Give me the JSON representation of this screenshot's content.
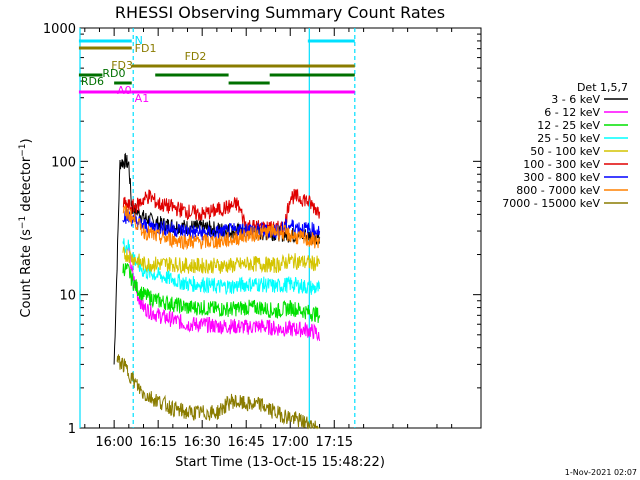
{
  "chart_data": {
    "type": "line",
    "title": "RHESSI Observing Summary Count Rates",
    "xlabel": "Start Time (13-Oct-15 15:48:22)",
    "ylabel": "Count Rate (s⁻¹ detector⁻¹)",
    "ylabel_main": "Count Rate (s",
    "ylabel_sup1": "−1",
    "ylabel_mid": " detector",
    "ylabel_sup2": "−1",
    "ylabel_end": ")",
    "y_scale": "log",
    "ylim": [
      1,
      1000
    ],
    "xlim": [
      "15:48:22",
      "18:05:00"
    ],
    "y_ticks": [
      1,
      10,
      100,
      1000
    ],
    "y_tick_labels": [
      "1",
      "10",
      "100",
      "1000"
    ],
    "x_ticks": [
      "16:00",
      "16:15",
      "16:30",
      "16:45",
      "17:00",
      "17:15"
    ],
    "timestamp": "1-Nov-2021 02:07",
    "legend": {
      "position": "right",
      "header": "Det 1,5,7",
      "entries": [
        {
          "name": "3 - 6 keV",
          "color": "#000000"
        },
        {
          "name": "6 - 12 keV",
          "color": "#ff00ff"
        },
        {
          "name": "12 - 25 keV",
          "color": "#00e000"
        },
        {
          "name": "25 - 50 keV",
          "color": "#00ffff"
        },
        {
          "name": "50 - 100 keV",
          "color": "#d4c400"
        },
        {
          "name": "100 - 300 keV",
          "color": "#e00000"
        },
        {
          "name": "300 - 800 keV",
          "color": "#0000ff"
        },
        {
          "name": "800 - 7000 keV",
          "color": "#ff8000"
        },
        {
          "name": "7000 - 15000 keV",
          "color": "#8a7c00"
        }
      ]
    },
    "flag_bars": [
      {
        "label": "N",
        "color": "#00e0ff",
        "segments": [
          [
            "15:48",
            "16:06"
          ],
          [
            "17:06",
            "17:22"
          ]
        ]
      },
      {
        "label": "FD1",
        "color": "#8a7c00",
        "segments": [
          [
            "15:48",
            "16:06"
          ]
        ]
      },
      {
        "label": "FD2",
        "color": "#8a7c00",
        "segments": [
          [
            "16:06",
            "17:22"
          ]
        ]
      },
      {
        "label": "FD3",
        "color": "#8a7c00",
        "segments": []
      },
      {
        "label": "RD0",
        "color": "#007000",
        "segments": [
          [
            "15:48",
            "15:56"
          ],
          [
            "16:14",
            "16:39"
          ],
          [
            "16:53",
            "17:22"
          ]
        ]
      },
      {
        "label": "RD6",
        "color": "#007000",
        "segments": [
          [
            "16:00",
            "16:06"
          ],
          [
            "16:39",
            "16:53"
          ]
        ]
      },
      {
        "label": "A0",
        "color": "#ff00ff",
        "segments": [
          [
            "15:48",
            "16:06"
          ]
        ]
      },
      {
        "label": "A1",
        "color": "#ff00ff",
        "segments": [
          [
            "16:06",
            "17:22"
          ]
        ]
      }
    ],
    "series": [
      {
        "name": "3 - 6 keV",
        "color": "#000000",
        "x": [
          "16:00",
          "16:02",
          "16:04",
          "16:05",
          "16:06",
          "16:08",
          "16:10",
          "16:15",
          "16:20",
          "16:25",
          "16:30",
          "16:35",
          "16:40",
          "16:45",
          "16:50",
          "16:55",
          "17:00",
          "17:05",
          "17:10"
        ],
        "y": [
          3,
          98,
          100,
          95,
          45,
          42,
          38,
          34,
          33,
          32,
          32,
          31,
          30,
          30,
          29,
          29,
          28,
          28,
          27
        ]
      },
      {
        "name": "6 - 12 keV",
        "color": "#ff00ff",
        "x": [
          "16:05",
          "16:06",
          "16:08",
          "16:10",
          "16:15",
          "16:20",
          "16:25",
          "16:30",
          "16:35",
          "16:40",
          "16:45",
          "16:50",
          "16:55",
          "17:00",
          "17:05",
          "17:09",
          "17:10"
        ],
        "y": [
          20,
          15,
          10,
          8,
          7,
          6.5,
          6,
          6,
          5.8,
          5.8,
          5.7,
          5.8,
          5.6,
          5.5,
          5.5,
          5.2,
          4.5
        ]
      },
      {
        "name": "12 - 25 keV",
        "color": "#00e000",
        "x": [
          "16:03",
          "16:05",
          "16:06",
          "16:08",
          "16:10",
          "16:15",
          "16:20",
          "16:25",
          "16:30",
          "16:35",
          "16:40",
          "16:45",
          "16:50",
          "16:55",
          "17:00",
          "17:05",
          "17:10"
        ],
        "y": [
          16,
          15,
          13,
          11,
          10,
          9,
          8.5,
          8,
          8,
          7.8,
          7.8,
          8,
          8,
          7.5,
          8,
          7.5,
          7
        ]
      },
      {
        "name": "25 - 50 keV",
        "color": "#00ffff",
        "x": [
          "16:03",
          "16:05",
          "16:06",
          "16:08",
          "16:10",
          "16:15",
          "16:20",
          "16:25",
          "16:30",
          "16:35",
          "16:40",
          "16:45",
          "16:50",
          "16:55",
          "17:00",
          "17:05",
          "17:10"
        ],
        "y": [
          24,
          23,
          20,
          17,
          15,
          14,
          13,
          12,
          12,
          11.5,
          11.5,
          12,
          12,
          11.5,
          12,
          11.5,
          11
        ]
      },
      {
        "name": "50 - 100 keV",
        "color": "#d4c400",
        "x": [
          "16:03",
          "16:05",
          "16:06",
          "16:08",
          "16:10",
          "16:15",
          "16:20",
          "16:25",
          "16:30",
          "16:35",
          "16:40",
          "16:45",
          "16:50",
          "16:55",
          "17:00",
          "17:05",
          "17:10"
        ],
        "y": [
          20,
          20,
          19,
          18,
          17,
          17,
          17,
          16.5,
          16.5,
          16.5,
          16.5,
          17,
          17,
          16.5,
          18,
          17.5,
          17
        ]
      },
      {
        "name": "100 - 300 keV",
        "color": "#e00000",
        "x": [
          "16:03",
          "16:05",
          "16:06",
          "16:08",
          "16:10",
          "16:12",
          "16:15",
          "16:20",
          "16:25",
          "16:30",
          "16:35",
          "16:40",
          "16:42",
          "16:45",
          "16:50",
          "16:55",
          "16:58",
          "17:00",
          "17:05",
          "17:10"
        ],
        "y": [
          48,
          46,
          45,
          47,
          52,
          55,
          48,
          45,
          42,
          40,
          43,
          46,
          48,
          33,
          32,
          31,
          32,
          55,
          52,
          42
        ]
      },
      {
        "name": "300 - 800 keV",
        "color": "#0000ff",
        "x": [
          "16:03",
          "16:05",
          "16:06",
          "16:08",
          "16:10",
          "16:15",
          "16:20",
          "16:25",
          "16:30",
          "16:35",
          "16:40",
          "16:45",
          "16:50",
          "16:55",
          "17:00",
          "17:05",
          "17:10"
        ],
        "y": [
          40,
          38,
          37,
          35,
          33,
          32,
          31,
          30,
          29,
          29,
          30,
          31,
          30,
          30,
          33,
          31,
          30
        ]
      },
      {
        "name": "800 - 7000 keV",
        "color": "#ff8000",
        "x": [
          "16:03",
          "16:05",
          "16:06",
          "16:08",
          "16:10",
          "16:15",
          "16:20",
          "16:25",
          "16:30",
          "16:35",
          "16:40",
          "16:45",
          "16:50",
          "16:55",
          "17:00",
          "17:05",
          "17:10"
        ],
        "y": [
          42,
          40,
          38,
          34,
          30,
          27,
          26,
          25,
          25,
          25,
          26,
          28,
          29,
          30,
          28,
          26,
          25
        ]
      },
      {
        "name": "7000 - 15000 keV",
        "color": "#8a7c00",
        "x": [
          "16:01",
          "16:03",
          "16:05",
          "16:07",
          "16:10",
          "16:15",
          "16:20",
          "16:25",
          "16:30",
          "16:35",
          "16:40",
          "16:45",
          "16:50",
          "16:55",
          "17:00",
          "17:05",
          "17:10"
        ],
        "y": [
          3.2,
          3.0,
          2.6,
          2.2,
          1.8,
          1.6,
          1.4,
          1.3,
          1.3,
          1.3,
          1.6,
          1.5,
          1.5,
          1.3,
          1.2,
          1.1,
          1.0
        ]
      }
    ]
  }
}
